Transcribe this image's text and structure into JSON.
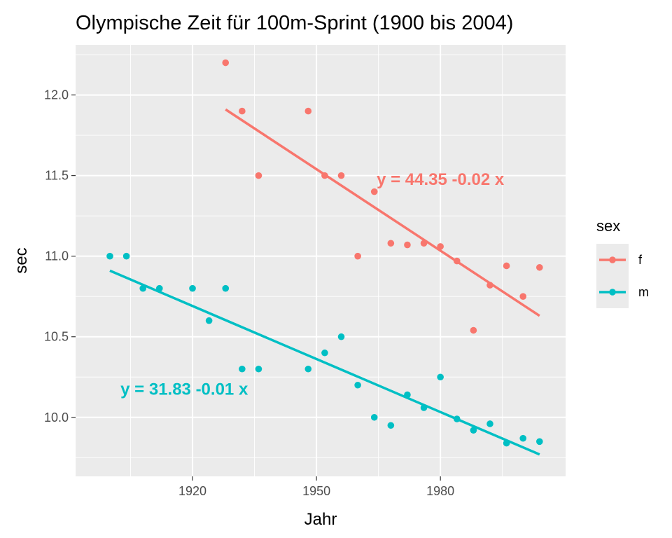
{
  "chart_data": {
    "type": "scatter",
    "title": "Olympische Zeit für 100m-Sprint (1900 bis 2004)",
    "xlabel": "Jahr",
    "ylabel": "sec",
    "xlim": [
      1891.7,
      2010.3
    ],
    "ylim": [
      9.634,
      12.311
    ],
    "x_ticks": [
      1920,
      1950,
      1980
    ],
    "x_tick_labels": [
      "1920",
      "1950",
      "1980"
    ],
    "y_ticks": [
      10.0,
      10.5,
      11.0,
      11.5,
      12.0
    ],
    "y_tick_labels": [
      "10.0",
      "10.5",
      "11.0",
      "11.5",
      "12.0"
    ],
    "grid": true,
    "legend": {
      "title": "sex",
      "placement": "right"
    },
    "series": [
      {
        "name": "f",
        "color": "#F8766D",
        "x": [
          1928,
          1932,
          1936,
          1948,
          1952,
          1956,
          1960,
          1964,
          1968,
          1972,
          1976,
          1980,
          1984,
          1988,
          1992,
          1996,
          2000,
          2004
        ],
        "y": [
          12.2,
          11.9,
          11.5,
          11.9,
          11.5,
          11.5,
          11.0,
          11.4,
          11.08,
          11.07,
          11.08,
          11.06,
          10.97,
          10.54,
          10.82,
          10.94,
          10.75,
          10.93
        ],
        "fit": {
          "x": [
            1928,
            2004
          ],
          "y": [
            11.91,
            10.63
          ]
        },
        "equation": "y = 44.35 -0.02 x",
        "equation_at": [
          1980,
          11.48
        ]
      },
      {
        "name": "m",
        "color": "#00BFC4",
        "x": [
          1900,
          1904,
          1908,
          1912,
          1920,
          1924,
          1928,
          1932,
          1936,
          1948,
          1952,
          1956,
          1960,
          1964,
          1968,
          1972,
          1976,
          1980,
          1984,
          1988,
          1992,
          1996,
          2000,
          2004
        ],
        "y": [
          11.0,
          11.0,
          10.8,
          10.8,
          10.8,
          10.6,
          10.8,
          10.3,
          10.3,
          10.3,
          10.4,
          10.5,
          10.2,
          10.0,
          9.95,
          10.14,
          10.06,
          10.25,
          9.99,
          9.92,
          9.96,
          9.84,
          9.87,
          9.85
        ],
        "fit": {
          "x": [
            1900,
            2004
          ],
          "y": [
            10.91,
            9.77
          ]
        },
        "equation": "y = 31.83 -0.01 x",
        "equation_at": [
          1918,
          10.18
        ]
      }
    ]
  }
}
